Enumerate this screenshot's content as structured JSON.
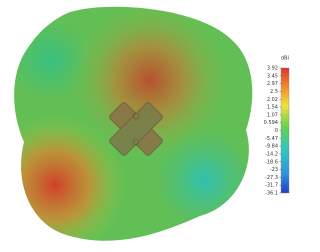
{
  "colorbar": {
    "unit": "dBi",
    "labels": [
      "3.92",
      "3.45",
      "2.97",
      "2.5",
      "2.02",
      "1.54",
      "1.07",
      "0.594",
      "0",
      "-5.47",
      "-9.84",
      "-14.2",
      "-18.6",
      "-23",
      "-27.3",
      "-31.7",
      "-36.1"
    ]
  }
}
